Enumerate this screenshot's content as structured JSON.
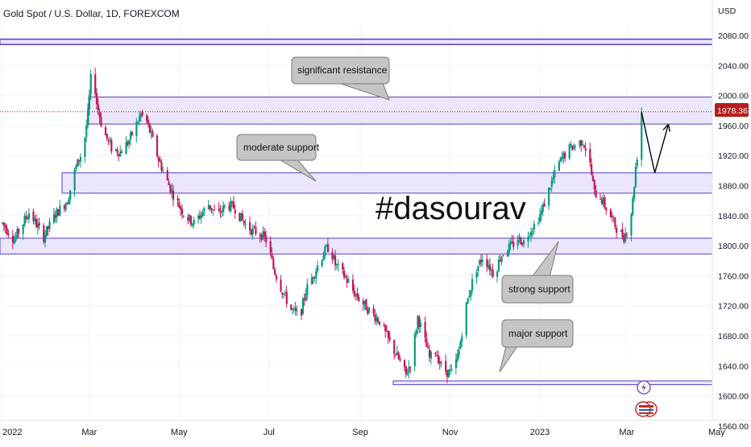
{
  "header": {
    "title": "Gold Spot / U.S. Dollar, 1D, FOREXCOM",
    "currency": "USD"
  },
  "price_label": {
    "value": "1978.36",
    "color": "#b71c1c"
  },
  "watermark": "#dasourav",
  "colors": {
    "up": "#089981",
    "down": "#c2185b",
    "zone_fill": "#e6e0fa",
    "zone_border": "#5b3fc4",
    "callout_fill": "#c5c5c5",
    "callout_border": "#7a7a7a"
  },
  "icons": [
    "lightning-icon",
    "us-flag-icon"
  ],
  "chart_data": {
    "type": "candlestick",
    "title": "Gold Spot / U.S. Dollar, 1D, FOREXCOM",
    "ylim": [
      1560,
      2100
    ],
    "y_ticks": [
      "2080.00",
      "2040.00",
      "2000.00",
      "1960.00",
      "1920.00",
      "1880.00",
      "1840.00",
      "1800.00",
      "1760.00",
      "1720.00",
      "1680.00",
      "1640.00",
      "1600.00",
      "1560.00"
    ],
    "x_ticks": [
      {
        "label": "2022",
        "day": 0
      },
      {
        "label": "Mar",
        "day": 59
      },
      {
        "label": "May",
        "day": 120
      },
      {
        "label": "Jul",
        "day": 181
      },
      {
        "label": "Sep",
        "day": 243
      },
      {
        "label": "Nov",
        "day": 304
      },
      {
        "label": "2023",
        "day": 365
      },
      {
        "label": "Mar",
        "day": 424
      },
      {
        "label": "May",
        "day": 485
      }
    ],
    "last_price": 1978.36,
    "zones": [
      {
        "name": "top band",
        "low": 2068,
        "high": 2075
      },
      {
        "name": "significant resistance",
        "low": 1962,
        "high": 1998
      },
      {
        "name": "moderate support",
        "low": 1870,
        "high": 1897
      },
      {
        "name": "strong support",
        "low": 1789,
        "high": 1810
      },
      {
        "name": "major support",
        "low": 1615,
        "high": 1620
      }
    ],
    "annotations": [
      {
        "text": "significant resistance",
        "target": "significant resistance"
      },
      {
        "text": "moderate support",
        "target": "moderate support"
      },
      {
        "text": "strong support",
        "target": "strong support"
      },
      {
        "text": "major support",
        "target": "major support"
      }
    ],
    "projection": [
      {
        "day": 434,
        "price": 1978
      },
      {
        "day": 443,
        "price": 1897
      },
      {
        "day": 452,
        "price": 1960
      }
    ],
    "price_path_knots": [
      [
        0,
        1830
      ],
      [
        8,
        1808
      ],
      [
        18,
        1845
      ],
      [
        28,
        1812
      ],
      [
        36,
        1842
      ],
      [
        44,
        1860
      ],
      [
        50,
        1905
      ],
      [
        55,
        1930
      ],
      [
        58,
        1975
      ],
      [
        61,
        2045
      ],
      [
        64,
        1990
      ],
      [
        68,
        1955
      ],
      [
        74,
        1930
      ],
      [
        80,
        1925
      ],
      [
        86,
        1940
      ],
      [
        94,
        1975
      ],
      [
        98,
        1965
      ],
      [
        102,
        1940
      ],
      [
        106,
        1915
      ],
      [
        112,
        1885
      ],
      [
        118,
        1860
      ],
      [
        124,
        1840
      ],
      [
        130,
        1830
      ],
      [
        136,
        1845
      ],
      [
        140,
        1855
      ],
      [
        146,
        1840
      ],
      [
        152,
        1855
      ],
      [
        158,
        1850
      ],
      [
        164,
        1830
      ],
      [
        170,
        1820
      ],
      [
        176,
        1815
      ],
      [
        180,
        1805
      ],
      [
        184,
        1770
      ],
      [
        190,
        1740
      ],
      [
        196,
        1715
      ],
      [
        202,
        1705
      ],
      [
        206,
        1740
      ],
      [
        212,
        1765
      ],
      [
        218,
        1790
      ],
      [
        222,
        1800
      ],
      [
        226,
        1775
      ],
      [
        232,
        1760
      ],
      [
        238,
        1740
      ],
      [
        244,
        1725
      ],
      [
        250,
        1712
      ],
      [
        256,
        1700
      ],
      [
        262,
        1675
      ],
      [
        266,
        1660
      ],
      [
        270,
        1645
      ],
      [
        274,
        1628
      ],
      [
        278,
        1650
      ],
      [
        282,
        1705
      ],
      [
        286,
        1680
      ],
      [
        290,
        1650
      ],
      [
        294,
        1660
      ],
      [
        298,
        1640
      ],
      [
        302,
        1632
      ],
      [
        306,
        1630
      ],
      [
        310,
        1660
      ],
      [
        314,
        1712
      ],
      [
        318,
        1745
      ],
      [
        322,
        1770
      ],
      [
        326,
        1785
      ],
      [
        330,
        1775
      ],
      [
        334,
        1760
      ],
      [
        338,
        1785
      ],
      [
        342,
        1795
      ],
      [
        346,
        1800
      ],
      [
        350,
        1810
      ],
      [
        354,
        1805
      ],
      [
        358,
        1820
      ],
      [
        362,
        1830
      ],
      [
        366,
        1845
      ],
      [
        372,
        1880
      ],
      [
        378,
        1910
      ],
      [
        384,
        1928
      ],
      [
        390,
        1935
      ],
      [
        394,
        1940
      ],
      [
        398,
        1920
      ],
      [
        402,
        1870
      ],
      [
        406,
        1865
      ],
      [
        410,
        1850
      ],
      [
        414,
        1835
      ],
      [
        418,
        1820
      ],
      [
        422,
        1812
      ],
      [
        426,
        1830
      ],
      [
        428,
        1860
      ],
      [
        430,
        1905
      ],
      [
        432,
        1935
      ],
      [
        433,
        1990
      ],
      [
        434,
        1978
      ]
    ]
  }
}
